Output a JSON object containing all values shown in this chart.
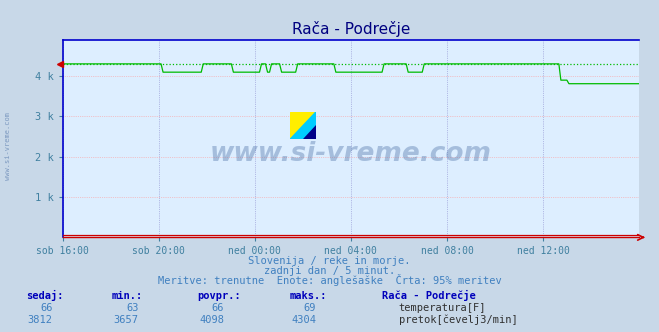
{
  "title": "Rača - Podrečje",
  "title_color": "#000080",
  "bg_color": "#c8d8e8",
  "plot_bg_color": "#ddeeff",
  "grid_color_v": "#aaaacc",
  "grid_color_h": "#ffaaaa",
  "x_labels": [
    "sob 16:00",
    "sob 20:00",
    "ned 00:00",
    "ned 04:00",
    "ned 08:00",
    "ned 12:00"
  ],
  "x_ticks_norm": [
    0.0,
    0.1667,
    0.3333,
    0.5,
    0.6667,
    0.8333
  ],
  "ylim": [
    0,
    4900
  ],
  "yticks": [
    1000,
    2000,
    3000,
    4000
  ],
  "ytick_labels": [
    "1 k",
    "2 k",
    "3 k",
    "4 k"
  ],
  "temp_color": "#cc0000",
  "flow_color": "#00bb00",
  "watermark_color": "#4a6fa5",
  "watermark_text": "www.si-vreme.com",
  "sidebar_text": "www.si-vreme.com",
  "footer_line1": "Slovenija / reke in morje.",
  "footer_line2": "zadnji dan / 5 minut.",
  "footer_line3": "Meritve: trenutne  Enote: anglešaške  Črta: 95% meritev",
  "footer_color": "#4080c0",
  "table_headers": [
    "sedaj:",
    "min.:",
    "povpr.:",
    "maks.:",
    "Rača - Podrečje"
  ],
  "table_header_color": "#0000bb",
  "temp_row": [
    "66",
    "63",
    "66",
    "69"
  ],
  "flow_row": [
    "3812",
    "3657",
    "4098",
    "4304"
  ],
  "temp_label": "temperatura[F]",
  "flow_label": "pretok[čevelj3/min]",
  "flow_max": 4304,
  "flow_values": [
    4304,
    4304,
    4304,
    4304,
    4304,
    4304,
    4304,
    4304,
    4304,
    4304,
    4304,
    4304,
    4304,
    4304,
    4304,
    4304,
    4304,
    4304,
    4304,
    4304,
    4304,
    4304,
    4304,
    4304,
    4304,
    4304,
    4304,
    4304,
    4304,
    4304,
    4304,
    4304,
    4304,
    4304,
    4304,
    4304,
    4304,
    4304,
    4304,
    4304,
    4304,
    4304,
    4304,
    4304,
    4304,
    4304,
    4304,
    4304,
    4304,
    4304,
    4098,
    4098,
    4098,
    4098,
    4098,
    4098,
    4098,
    4098,
    4098,
    4098,
    4098,
    4098,
    4098,
    4098,
    4098,
    4098,
    4098,
    4098,
    4098,
    4098,
    4304,
    4304,
    4304,
    4304,
    4304,
    4304,
    4304,
    4304,
    4304,
    4304,
    4304,
    4304,
    4304,
    4304,
    4304,
    4098,
    4098,
    4098,
    4098,
    4098,
    4098,
    4098,
    4098,
    4098,
    4098,
    4098,
    4098,
    4098,
    4098,
    4304,
    4304,
    4304,
    4098,
    4098,
    4304,
    4304,
    4304,
    4304,
    4304,
    4098,
    4098,
    4098,
    4098,
    4098,
    4098,
    4098,
    4098,
    4304,
    4304,
    4304,
    4304,
    4304,
    4304,
    4304,
    4304,
    4304,
    4304,
    4304,
    4304,
    4304,
    4304,
    4304,
    4304,
    4304,
    4304,
    4304,
    4098,
    4098,
    4098,
    4098,
    4098,
    4098,
    4098,
    4098,
    4098,
    4098,
    4098,
    4098,
    4098,
    4098,
    4098,
    4098,
    4098,
    4098,
    4098,
    4098,
    4098,
    4098,
    4098,
    4098,
    4304,
    4304,
    4304,
    4304,
    4304,
    4304,
    4304,
    4304,
    4304,
    4304,
    4304,
    4304,
    4098,
    4098,
    4098,
    4098,
    4098,
    4098,
    4098,
    4098,
    4304,
    4304,
    4304,
    4304,
    4304,
    4304,
    4304,
    4304,
    4304,
    4304,
    4304,
    4304,
    4304,
    4304,
    4304,
    4304,
    4304,
    4304,
    4304,
    4304,
    4304,
    4304,
    4304,
    4304,
    4304,
    4304,
    4304,
    4304,
    4304,
    4304,
    4304,
    4304,
    4304,
    4304,
    4304,
    4304,
    4304,
    4304,
    4304,
    4304,
    4304,
    4304,
    4304,
    4304,
    4304,
    4304,
    4304,
    4304,
    4304,
    4304,
    4304,
    4304,
    4304,
    4304,
    4304,
    4304,
    4304,
    4304,
    4304,
    4304,
    4304,
    4304,
    4304,
    4304,
    4304,
    4304,
    4304,
    4304,
    3900,
    3900,
    3900,
    3900,
    3812,
    3812,
    3812,
    3812,
    3812,
    3812,
    3812,
    3812,
    3812,
    3812,
    3812,
    3812,
    3812,
    3812,
    3812,
    3812,
    3812,
    3812,
    3812,
    3812,
    3812,
    3812,
    3812,
    3812,
    3812,
    3812,
    3812,
    3812,
    3812,
    3812,
    3812,
    3812,
    3812,
    3812,
    3812,
    3812
  ]
}
